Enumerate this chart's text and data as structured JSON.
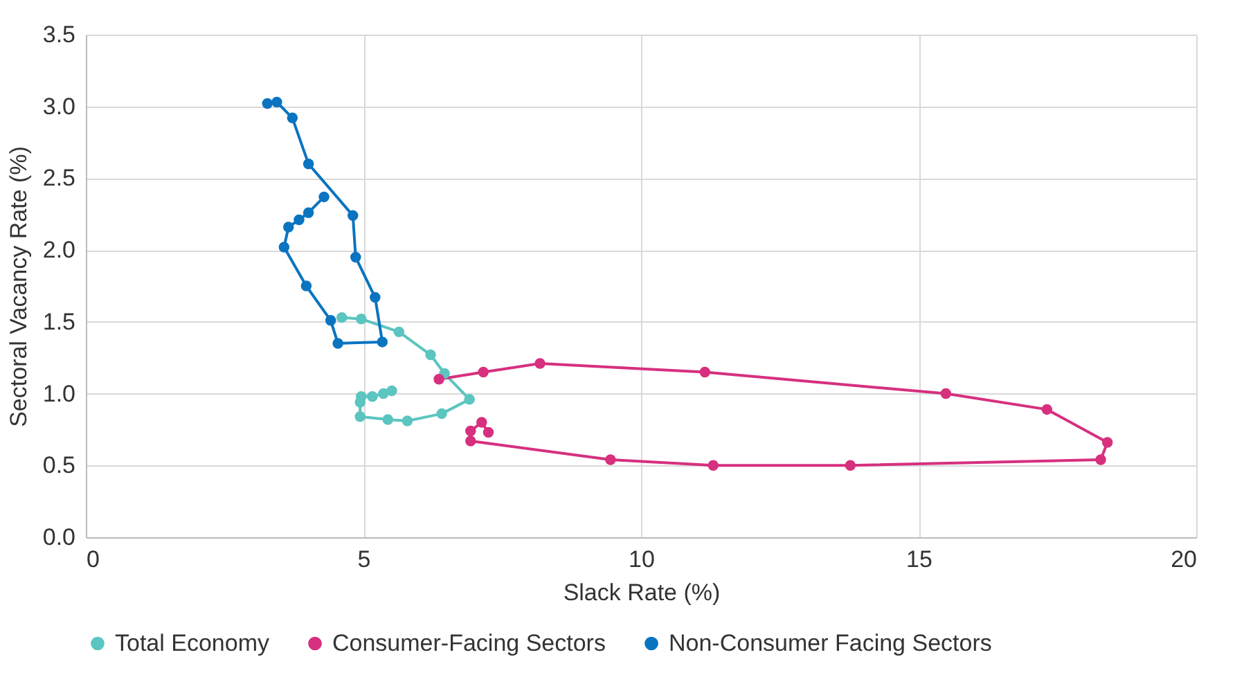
{
  "chart_data": {
    "type": "line",
    "xlabel": "Slack Rate (%)",
    "ylabel": "Sectoral Vacancy Rate (%)",
    "xlim": [
      0,
      20
    ],
    "xticks": [
      0,
      5,
      10,
      15,
      20
    ],
    "ylim": [
      0,
      3.5
    ],
    "yticks": [
      {
        "value": 0,
        "label": "0.0"
      },
      0.5,
      {
        "value": 1,
        "label": "1.0"
      },
      1.5,
      {
        "value": 2,
        "label": "2.0"
      },
      2.5,
      {
        "value": 3,
        "label": "3.0"
      },
      3.5
    ],
    "grid": true,
    "legend": "bottom",
    "marker": "circle",
    "line_style": "solid",
    "series": [
      {
        "name": "Total Economy",
        "color": "#5bc5c0",
        "x": [
          4.61,
          4.96,
          5.64,
          6.21,
          6.46,
          6.91,
          6.41,
          5.79,
          5.44,
          4.94,
          4.94,
          4.96,
          5.16,
          5.36,
          5.51
        ],
        "values": [
          1.53,
          1.52,
          1.43,
          1.27,
          1.14,
          0.96,
          0.86,
          0.81,
          0.82,
          0.84,
          0.94,
          0.98,
          0.98,
          1.0,
          1.02
        ]
      },
      {
        "name": "Consumer-Facing Sectors",
        "color": "#d6307f",
        "x": [
          6.36,
          7.16,
          8.18,
          11.15,
          15.49,
          17.31,
          18.4,
          18.28,
          13.77,
          11.3,
          9.45,
          6.93,
          6.93,
          7.13,
          7.25
        ],
        "values": [
          1.1,
          1.15,
          1.21,
          1.15,
          1.0,
          0.89,
          0.66,
          0.54,
          0.5,
          0.5,
          0.54,
          0.67,
          0.74,
          0.8,
          0.73
        ]
      },
      {
        "name": "Non-Consumer Facing Sectors",
        "color": "#0a74c0",
        "x": [
          3.27,
          3.44,
          3.72,
          4.01,
          4.81,
          4.86,
          5.21,
          5.34,
          4.54,
          4.41,
          3.97,
          3.57,
          3.65,
          3.84,
          4.01,
          4.29
        ],
        "values": [
          3.02,
          3.03,
          2.92,
          2.6,
          2.24,
          1.95,
          1.67,
          1.36,
          1.35,
          1.51,
          1.75,
          2.02,
          2.16,
          2.21,
          2.26,
          2.37
        ]
      }
    ]
  }
}
